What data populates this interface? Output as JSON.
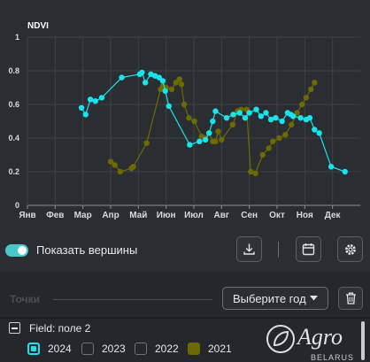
{
  "chart_data": {
    "type": "line",
    "ylabel": "NDVI",
    "ylim": [
      0,
      1
    ],
    "yticks": [
      "0",
      "0.2",
      "0.4",
      "0.6",
      "0.8",
      "1"
    ],
    "xlim": [
      0,
      12
    ],
    "categories": [
      "Янв",
      "Фев",
      "Мар",
      "Апр",
      "Май",
      "Июн",
      "Июл",
      "Авг",
      "Сен",
      "Окт",
      "Ноя",
      "Дек"
    ],
    "grid": true,
    "series": [
      {
        "name": "2024",
        "color": "#19e3eb",
        "marker_style": "filled",
        "points": [
          [
            1.95,
            0.58
          ],
          [
            2.1,
            0.54
          ],
          [
            2.27,
            0.63
          ],
          [
            2.45,
            0.62
          ],
          [
            2.68,
            0.64
          ],
          [
            3.4,
            0.76
          ],
          [
            4.05,
            0.78
          ],
          [
            4.13,
            0.79
          ],
          [
            4.25,
            0.73
          ],
          [
            4.45,
            0.78
          ],
          [
            4.6,
            0.77
          ],
          [
            4.75,
            0.76
          ],
          [
            4.88,
            0.74
          ],
          [
            4.97,
            0.68
          ],
          [
            5.1,
            0.59
          ],
          [
            5.85,
            0.36
          ],
          [
            6.2,
            0.38
          ],
          [
            6.42,
            0.39
          ],
          [
            6.55,
            0.43
          ],
          [
            6.68,
            0.5
          ],
          [
            6.78,
            0.56
          ],
          [
            7.18,
            0.52
          ],
          [
            7.42,
            0.54
          ],
          [
            7.65,
            0.55
          ],
          [
            7.85,
            0.52
          ],
          [
            8.0,
            0.55
          ],
          [
            8.25,
            0.57
          ],
          [
            8.42,
            0.53
          ],
          [
            8.6,
            0.55
          ],
          [
            8.78,
            0.51
          ],
          [
            8.95,
            0.52
          ],
          [
            9.18,
            0.5
          ],
          [
            9.38,
            0.55
          ],
          [
            9.5,
            0.54
          ],
          [
            9.58,
            0.53
          ],
          [
            9.85,
            0.52
          ],
          [
            10.05,
            0.51
          ],
          [
            10.18,
            0.52
          ],
          [
            10.35,
            0.45
          ],
          [
            10.52,
            0.43
          ],
          [
            10.95,
            0.23
          ],
          [
            11.45,
            0.2
          ]
        ]
      },
      {
        "name": "2021",
        "color": "#6d6a00",
        "marker_style": "filled",
        "points": [
          [
            3.0,
            0.26
          ],
          [
            3.15,
            0.24
          ],
          [
            3.35,
            0.2
          ],
          [
            3.75,
            0.22
          ],
          [
            3.82,
            0.23
          ],
          [
            4.3,
            0.37
          ],
          [
            4.8,
            0.69
          ],
          [
            4.88,
            0.71
          ],
          [
            5.0,
            0.7
          ],
          [
            5.2,
            0.69
          ],
          [
            5.35,
            0.73
          ],
          [
            5.48,
            0.75
          ],
          [
            5.55,
            0.72
          ],
          [
            5.65,
            0.6
          ],
          [
            5.82,
            0.52
          ],
          [
            6.02,
            0.5
          ],
          [
            6.28,
            0.41
          ],
          [
            6.4,
            0.4
          ],
          [
            6.55,
            0.43
          ],
          [
            6.68,
            0.38
          ],
          [
            6.78,
            0.38
          ],
          [
            6.88,
            0.44
          ],
          [
            7.0,
            0.39
          ],
          [
            7.4,
            0.48
          ],
          [
            7.58,
            0.56
          ],
          [
            7.7,
            0.57
          ],
          [
            7.9,
            0.57
          ],
          [
            8.05,
            0.2
          ],
          [
            8.22,
            0.19
          ],
          [
            8.48,
            0.3
          ],
          [
            8.7,
            0.34
          ],
          [
            8.85,
            0.38
          ],
          [
            9.08,
            0.4
          ],
          [
            9.3,
            0.42
          ],
          [
            9.52,
            0.48
          ],
          [
            9.72,
            0.55
          ],
          [
            9.9,
            0.6
          ],
          [
            10.05,
            0.64
          ],
          [
            10.22,
            0.69
          ],
          [
            10.35,
            0.73
          ]
        ]
      }
    ]
  },
  "controls": {
    "show_peaks_label": "Показать вершины",
    "show_peaks_on": true
  },
  "points_panel": {
    "title": "Точки",
    "year_select_placeholder": "Выберите год",
    "field_label": "Field: поле 2",
    "years": [
      {
        "label": "2024",
        "checked": true,
        "color": "#19e3eb"
      },
      {
        "label": "2023",
        "checked": false,
        "color": ""
      },
      {
        "label": "2022",
        "checked": false,
        "color": ""
      },
      {
        "label": "2021",
        "checked": false,
        "color": "#6d6a00"
      }
    ]
  },
  "watermark": {
    "text": "Agro",
    "subtext": "BELARUS"
  }
}
